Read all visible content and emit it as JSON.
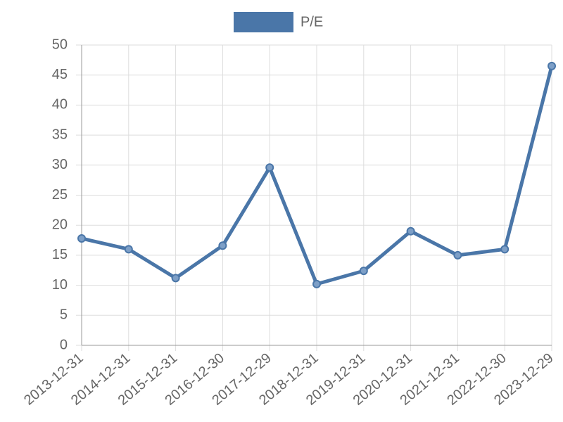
{
  "chart_data": {
    "type": "line",
    "categories": [
      "2013-12-31",
      "2014-12-31",
      "2015-12-31",
      "2016-12-30",
      "2017-12-29",
      "2018-12-31",
      "2019-12-31",
      "2020-12-31",
      "2021-12-31",
      "2022-12-30",
      "2023-12-29"
    ],
    "series": [
      {
        "name": "P/E",
        "color": "#4a76a8",
        "values": [
          17.8,
          16.0,
          11.2,
          16.6,
          29.6,
          10.2,
          12.4,
          19.0,
          15.0,
          16.0,
          46.5
        ]
      }
    ],
    "ylim": [
      0,
      50
    ],
    "yticks": [
      0,
      5,
      10,
      15,
      20,
      25,
      30,
      35,
      40,
      45,
      50
    ],
    "grid": true,
    "legend": "top"
  }
}
